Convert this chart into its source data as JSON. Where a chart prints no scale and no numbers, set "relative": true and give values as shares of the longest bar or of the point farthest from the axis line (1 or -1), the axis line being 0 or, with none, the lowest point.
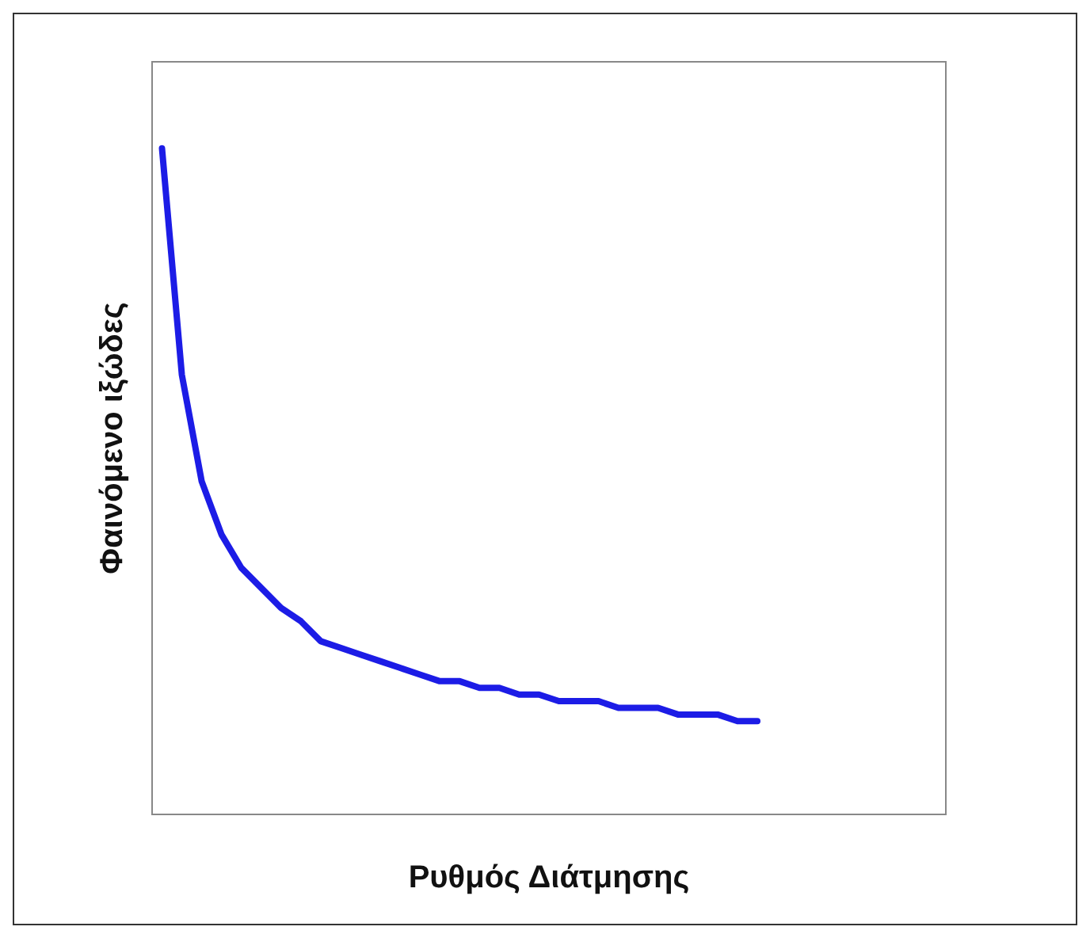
{
  "chart_data": {
    "type": "line",
    "relative": true,
    "xlabel": "Ρυθμός Διάτμησης",
    "ylabel": "Φαινόμενο ιξώδες",
    "grid": false,
    "marker": "none",
    "line_style": "solid",
    "categories": [
      null,
      null,
      null,
      null,
      null,
      null,
      null,
      null,
      null,
      null,
      null,
      null,
      null,
      null,
      null,
      null,
      null,
      null,
      null,
      null,
      null,
      null,
      null,
      null,
      null,
      null,
      null,
      null,
      null,
      null,
      null,
      null,
      null,
      null,
      null,
      null,
      null,
      null,
      null,
      null
    ],
    "series": [
      {
        "color": "#1c1ce6",
        "values": [
          1,
          0.66,
          0.5,
          0.42,
          0.37,
          0.34,
          0.31,
          0.29,
          0.26,
          0.25,
          0.24,
          0.23,
          0.22,
          0.21,
          0.2,
          0.2,
          0.19,
          0.19,
          0.18,
          0.18,
          0.17,
          0.17,
          0.17,
          0.16,
          0.16,
          0.16,
          0.15,
          0.15,
          0.15,
          0.14,
          0.14,
          null,
          null,
          null,
          null,
          null,
          null,
          null,
          null,
          null
        ]
      }
    ]
  }
}
